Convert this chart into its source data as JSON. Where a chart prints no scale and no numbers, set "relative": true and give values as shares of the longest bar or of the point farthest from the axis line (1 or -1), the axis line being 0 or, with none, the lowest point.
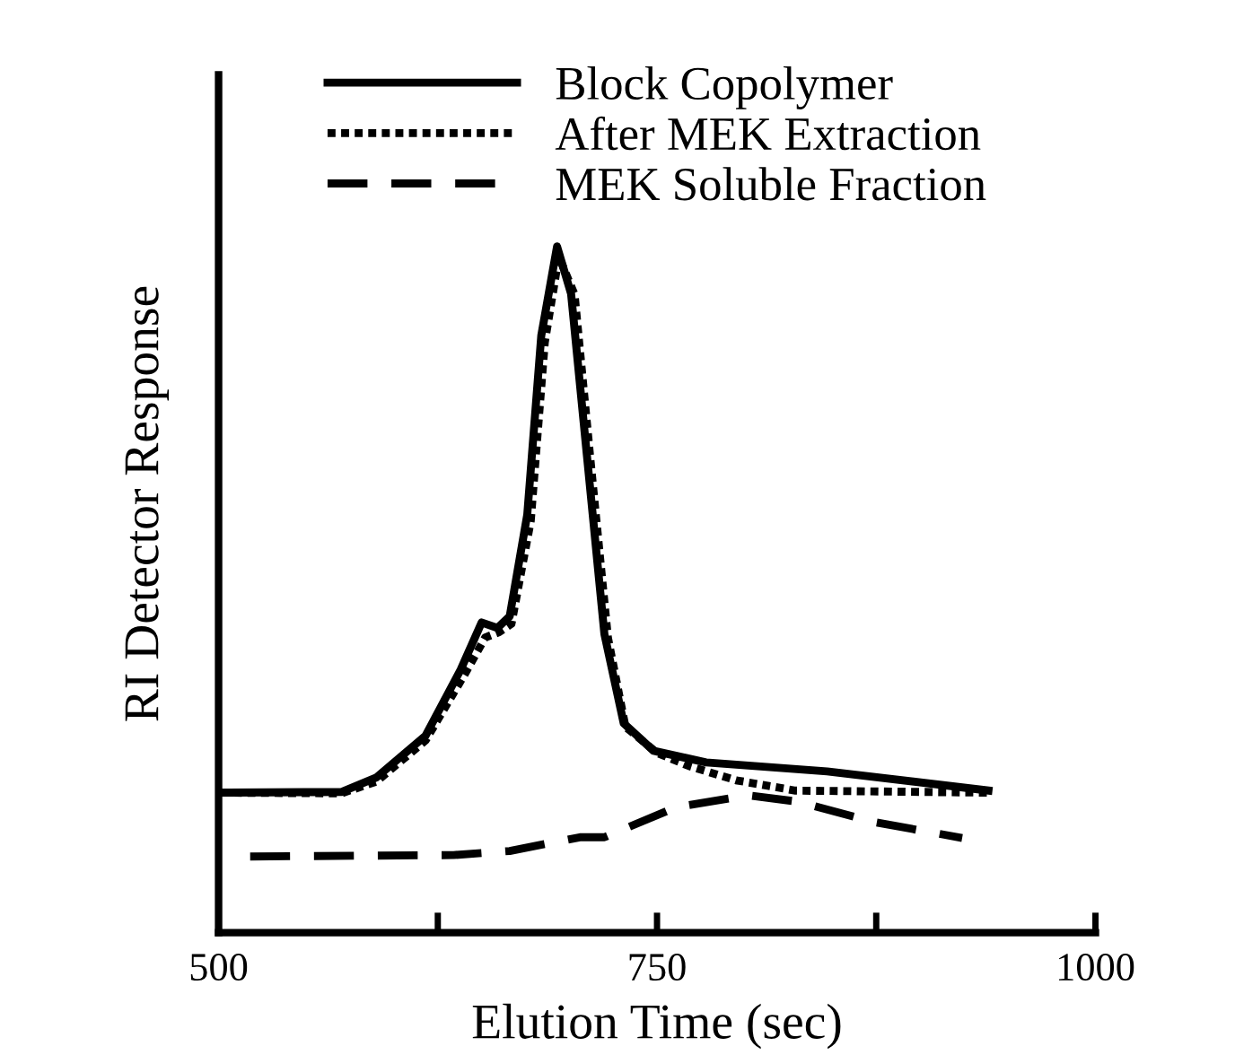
{
  "chart_data": {
    "type": "line",
    "relative": true,
    "xlabel": "Elution Time (sec)",
    "ylabel": "RI Detector Response",
    "xlim": [
      500,
      1000
    ],
    "xticks": [
      500,
      {
        "value": 625,
        "label": null
      },
      750,
      {
        "value": 875,
        "label": null
      },
      1000
    ],
    "legend": "top",
    "grid": false,
    "marker": "none",
    "series": [
      {
        "name": "Block Copolymer",
        "color": "#000000",
        "line_style": "solid",
        "x": [
          501,
          570,
          590,
          618,
          638,
          650,
          659,
          666,
          676,
          684,
          693,
          701,
          710,
          720,
          731,
          748,
          778,
          847,
          939
        ],
        "values": [
          0.204,
          0.205,
          0.226,
          0.287,
          0.383,
          0.452,
          0.444,
          0.461,
          0.609,
          0.87,
          1.0,
          0.931,
          0.696,
          0.435,
          0.305,
          0.265,
          0.248,
          0.235,
          0.207
        ]
      },
      {
        "name": "After MEK Extraction",
        "color": "#000000",
        "line_style": "dotted",
        "x": [
          501,
          570,
          590,
          618,
          640,
          652,
          660,
          667,
          678,
          686,
          694,
          703,
          712,
          722,
          732,
          750,
          768,
          795,
          829,
          939
        ],
        "values": [
          0.204,
          0.203,
          0.22,
          0.28,
          0.375,
          0.43,
          0.438,
          0.45,
          0.6,
          0.86,
          0.985,
          0.93,
          0.69,
          0.43,
          0.3,
          0.262,
          0.243,
          0.222,
          0.207,
          0.204
        ]
      },
      {
        "name": "MEK Soluble Fraction",
        "color": "#000000",
        "line_style": "dashed",
        "x": [
          518,
          634,
          666,
          706,
          720,
          761,
          802,
          830,
          874,
          924
        ],
        "values": [
          0.111,
          0.113,
          0.119,
          0.139,
          0.139,
          0.183,
          0.2,
          0.191,
          0.161,
          0.138
        ]
      }
    ]
  }
}
